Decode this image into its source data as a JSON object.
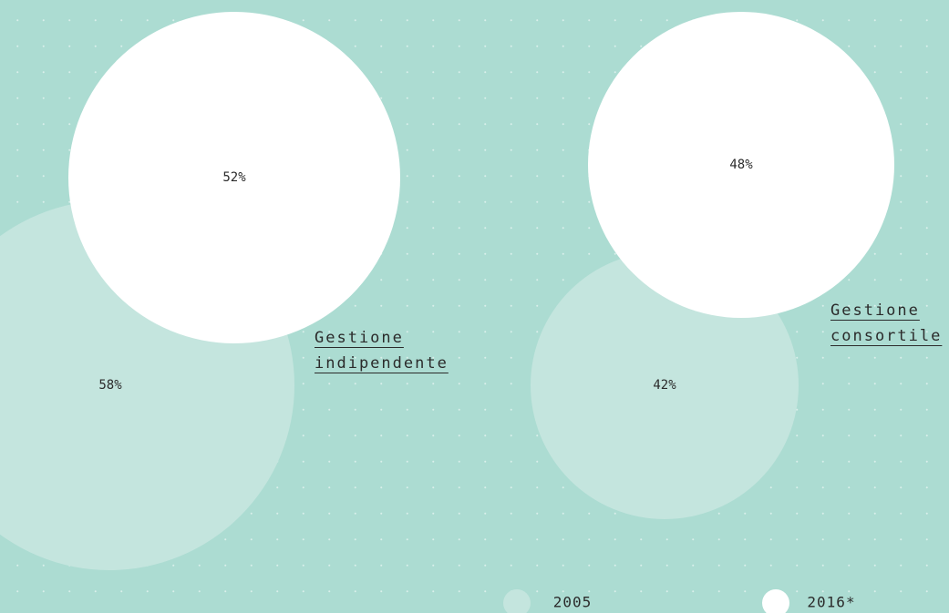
{
  "chart_data": {
    "type": "bubble",
    "categories": [
      "Gestione indipendente",
      "Gestione consortile"
    ],
    "series": [
      {
        "name": "2005",
        "color": "#c4e5de",
        "values": [
          58,
          42
        ],
        "value_labels": [
          "58%",
          "42%"
        ]
      },
      {
        "name": "2016*",
        "color": "#ffffff",
        "values": [
          52,
          48
        ],
        "value_labels": [
          "52%",
          "48%"
        ]
      }
    ]
  }
}
